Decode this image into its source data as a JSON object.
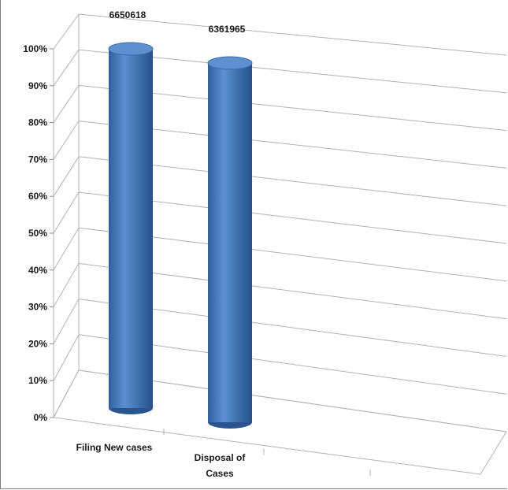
{
  "chart_data": {
    "type": "bar",
    "style": "3d-cylinder",
    "categories": [
      "Filing New cases",
      "Disposal of Cases"
    ],
    "values": [
      6650618,
      6361965
    ],
    "data_labels": [
      "6650618",
      "6361965"
    ],
    "percent_of_axis": [
      100,
      100
    ],
    "yticks": [
      "0%",
      "10%",
      "20%",
      "30%",
      "40%",
      "50%",
      "60%",
      "70%",
      "80%",
      "90%",
      "100%"
    ],
    "ylim": [
      0,
      100
    ],
    "grid": true,
    "bar_color": "#4a7ebb"
  }
}
